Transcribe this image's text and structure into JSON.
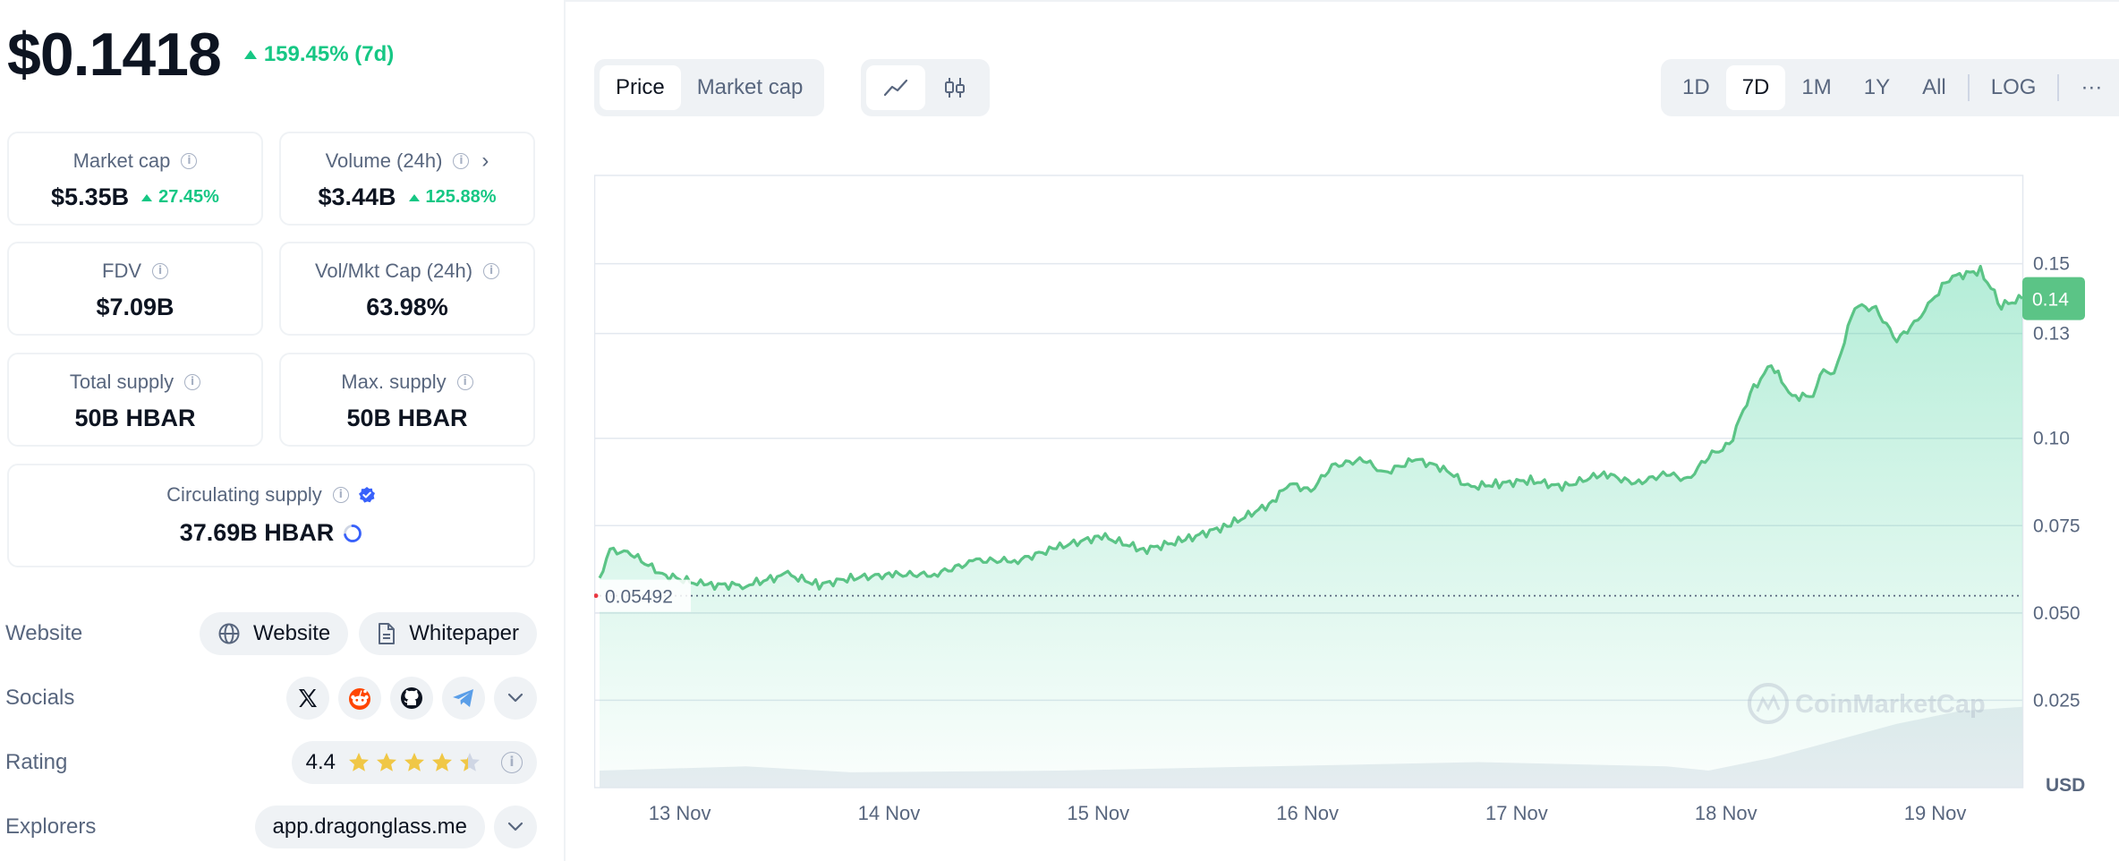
{
  "price": {
    "value": "$0.1418",
    "change": "159.45% (7d)"
  },
  "stats": {
    "market_cap": {
      "label": "Market cap",
      "value": "$5.35B",
      "change": "27.45%"
    },
    "volume": {
      "label": "Volume (24h)",
      "value": "$3.44B",
      "change": "125.88%"
    },
    "fdv": {
      "label": "FDV",
      "value": "$7.09B"
    },
    "vol_mkt_cap": {
      "label": "Vol/Mkt Cap (24h)",
      "value": "63.98%"
    },
    "total_supply": {
      "label": "Total supply",
      "value": "50B HBAR"
    },
    "max_supply": {
      "label": "Max. supply",
      "value": "50B HBAR"
    },
    "circulating_supply": {
      "label": "Circulating supply",
      "value": "37.69B HBAR"
    }
  },
  "links": {
    "website_label": "Website",
    "website_button": "Website",
    "whitepaper_button": "Whitepaper",
    "socials_label": "Socials",
    "social_icons": [
      "x-icon",
      "reddit-icon",
      "github-icon",
      "telegram-icon"
    ],
    "rating_label": "Rating",
    "rating_value": "4.4",
    "rating_stars": 4.4,
    "explorers_label": "Explorers",
    "explorer_value": "app.dragonglass.me"
  },
  "chart_controls": {
    "tab_price": "Price",
    "tab_market_cap": "Market cap",
    "range_1d": "1D",
    "range_7d": "7D",
    "range_1m": "1M",
    "range_1y": "1Y",
    "range_all": "All",
    "log": "LOG",
    "more": "···"
  },
  "colors": {
    "accent_green": "#16c784",
    "line_green": "#5bc486",
    "text_dark": "#0d1421",
    "text_muted": "#58667e",
    "pill_bg": "#eff2f5",
    "verified_blue": "#3861fb"
  },
  "chart_data": {
    "type": "area",
    "x_ticks": [
      "13 Nov",
      "14 Nov",
      "15 Nov",
      "16 Nov",
      "17 Nov",
      "18 Nov",
      "19 Nov"
    ],
    "y_ticks": [
      "0.025",
      "0.050",
      "0.075",
      "0.10",
      "0.13",
      "0.15"
    ],
    "ylim": [
      0,
      0.175
    ],
    "y_unit": "USD",
    "current_price_label": "0.14",
    "reference_label": "0.05492",
    "reference_value": 0.05492,
    "watermark": "CoinMarketCap",
    "series": [
      {
        "x": [
          12.8,
          12.85,
          12.95,
          13.1,
          13.3,
          13.5,
          13.7,
          13.85,
          14.0,
          14.2,
          14.4,
          14.6,
          14.8,
          15.0,
          15.2,
          15.4,
          15.6,
          15.8,
          16.0,
          16.1,
          16.2,
          16.3,
          16.45,
          16.55,
          16.7,
          16.85,
          16.95,
          17.1,
          17.25,
          17.4,
          17.6,
          17.75,
          17.9,
          18.0,
          18.1,
          18.2,
          18.3,
          18.4,
          18.5,
          18.6,
          18.65,
          18.7,
          18.8,
          18.9,
          19.0,
          19.1,
          19.15,
          19.25,
          19.4,
          19.5,
          19.6
        ],
        "values": [
          0.06,
          0.068,
          0.067,
          0.061,
          0.058,
          0.058,
          0.061,
          0.058,
          0.06,
          0.061,
          0.061,
          0.065,
          0.065,
          0.069,
          0.072,
          0.068,
          0.071,
          0.075,
          0.081,
          0.087,
          0.085,
          0.092,
          0.094,
          0.09,
          0.094,
          0.091,
          0.086,
          0.087,
          0.088,
          0.086,
          0.09,
          0.087,
          0.09,
          0.088,
          0.095,
          0.098,
          0.113,
          0.121,
          0.112,
          0.112,
          0.12,
          0.118,
          0.138,
          0.137,
          0.128,
          0.134,
          0.138,
          0.146,
          0.148,
          0.138,
          0.14
        ]
      }
    ],
    "volume": {
      "x": [
        12.8,
        13.5,
        14.0,
        15.0,
        16.0,
        17.0,
        17.9,
        18.1,
        18.4,
        18.7,
        19.0,
        19.3,
        19.6
      ],
      "values": [
        0.2,
        0.25,
        0.18,
        0.2,
        0.25,
        0.3,
        0.25,
        0.2,
        0.35,
        0.55,
        0.75,
        0.9,
        0.95
      ]
    }
  }
}
